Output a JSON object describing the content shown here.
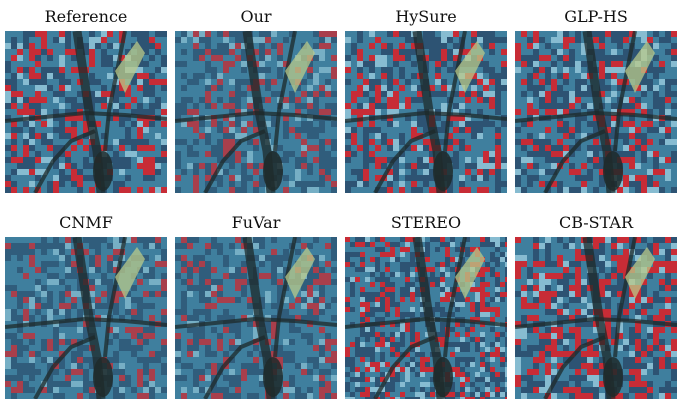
{
  "figure": {
    "panels": [
      {
        "label": "Reference",
        "variant": "reference"
      },
      {
        "label": "Our",
        "variant": "smooth"
      },
      {
        "label": "HySure",
        "variant": "sharp"
      },
      {
        "label": "GLP-HS",
        "variant": "sharp"
      },
      {
        "label": "CNMF",
        "variant": "smooth"
      },
      {
        "label": "FuVar",
        "variant": "smooth"
      },
      {
        "label": "STEREO",
        "variant": "noisy"
      },
      {
        "label": "CB-STAR",
        "variant": "redshift"
      }
    ],
    "colors": {
      "water_blue": "#3f7f9e",
      "deep_blue": "#2b4f6e",
      "vegetation_red": "#d6232a",
      "dark_shadow": "#1e2a2a",
      "pale_green": "#b9c98a"
    }
  }
}
